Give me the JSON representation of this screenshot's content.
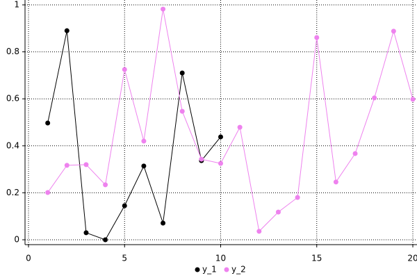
{
  "chart_data": {
    "type": "line",
    "series": [
      {
        "name": "y_1",
        "color": "#000000",
        "x": [
          1,
          2,
          3,
          4,
          5,
          6,
          7,
          8,
          9,
          10
        ],
        "values": [
          0.497,
          0.89,
          0.03,
          0.0,
          0.145,
          0.314,
          0.071,
          0.71,
          0.337,
          0.438
        ]
      },
      {
        "name": "y_2",
        "color": "#ee82ee",
        "x": [
          1,
          2,
          3,
          4,
          5,
          6,
          7,
          8,
          9,
          10,
          11,
          12,
          13,
          14,
          15,
          16,
          17,
          18,
          19,
          20
        ],
        "values": [
          0.201,
          0.317,
          0.32,
          0.234,
          0.725,
          0.42,
          0.982,
          0.547,
          0.343,
          0.325,
          0.479,
          0.036,
          0.118,
          0.18,
          0.861,
          0.246,
          0.367,
          0.604,
          0.888,
          0.598
        ]
      }
    ],
    "xlim": [
      0,
      20
    ],
    "xticks": [
      0,
      5,
      10,
      15,
      20
    ],
    "ylim": [
      0,
      1
    ],
    "yticks": [
      0,
      0.2,
      0.4,
      0.6,
      0.8,
      1
    ],
    "grid": true,
    "legend": "bottom"
  }
}
